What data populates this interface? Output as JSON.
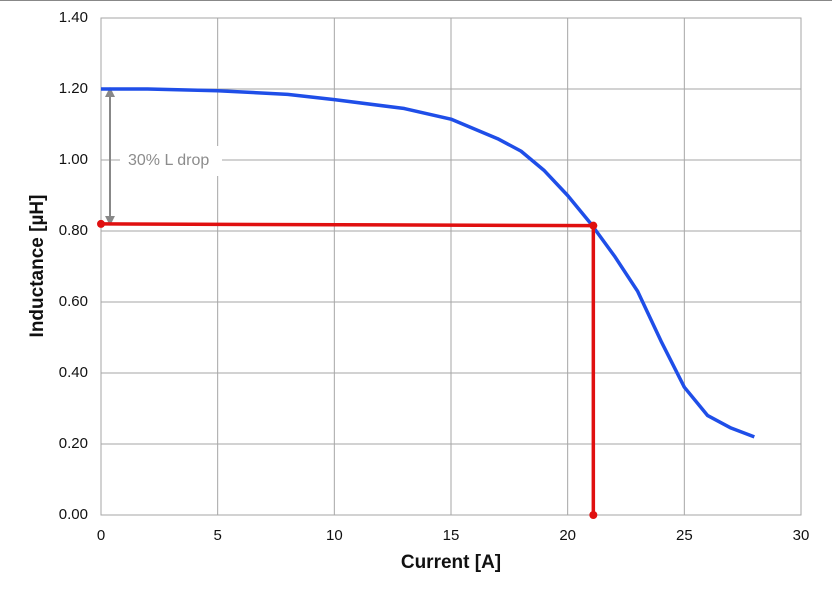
{
  "chart_data": {
    "type": "line",
    "xlabel": "Current [A]",
    "ylabel": "Inductance [µH]",
    "annotation": "30% L drop",
    "xlim": [
      0,
      30
    ],
    "xticks": [
      0,
      5,
      10,
      15,
      20,
      25,
      30
    ],
    "ylim": [
      0,
      1.4
    ],
    "yticks": [
      {
        "value": 0,
        "label": "0.00"
      },
      {
        "value": 0.2,
        "label": "0.20"
      },
      {
        "value": 0.4,
        "label": "0.40"
      },
      {
        "value": 0.6,
        "label": "0.60"
      },
      {
        "value": 0.8,
        "label": "0.80"
      },
      {
        "value": 1.0,
        "label": "1.00"
      },
      {
        "value": 1.2,
        "label": "1.20"
      },
      {
        "value": 1.4,
        "label": "1.40"
      }
    ],
    "grid": true,
    "series": [
      {
        "color": "#1f4ee8",
        "markers": false,
        "x": [
          0,
          2,
          5,
          8,
          10,
          13,
          15,
          17,
          18,
          19,
          20,
          21,
          22,
          23,
          24,
          25,
          26,
          27,
          28
        ],
        "values": [
          1.2,
          1.2,
          1.195,
          1.185,
          1.17,
          1.145,
          1.115,
          1.06,
          1.025,
          0.97,
          0.9,
          0.82,
          0.73,
          0.63,
          0.49,
          0.36,
          0.28,
          0.245,
          0.22
        ]
      },
      {
        "color": "#e01010",
        "markers": true,
        "x": [
          0,
          21.1,
          21.1
        ],
        "values": [
          0.82,
          0.815,
          0
        ]
      }
    ]
  }
}
